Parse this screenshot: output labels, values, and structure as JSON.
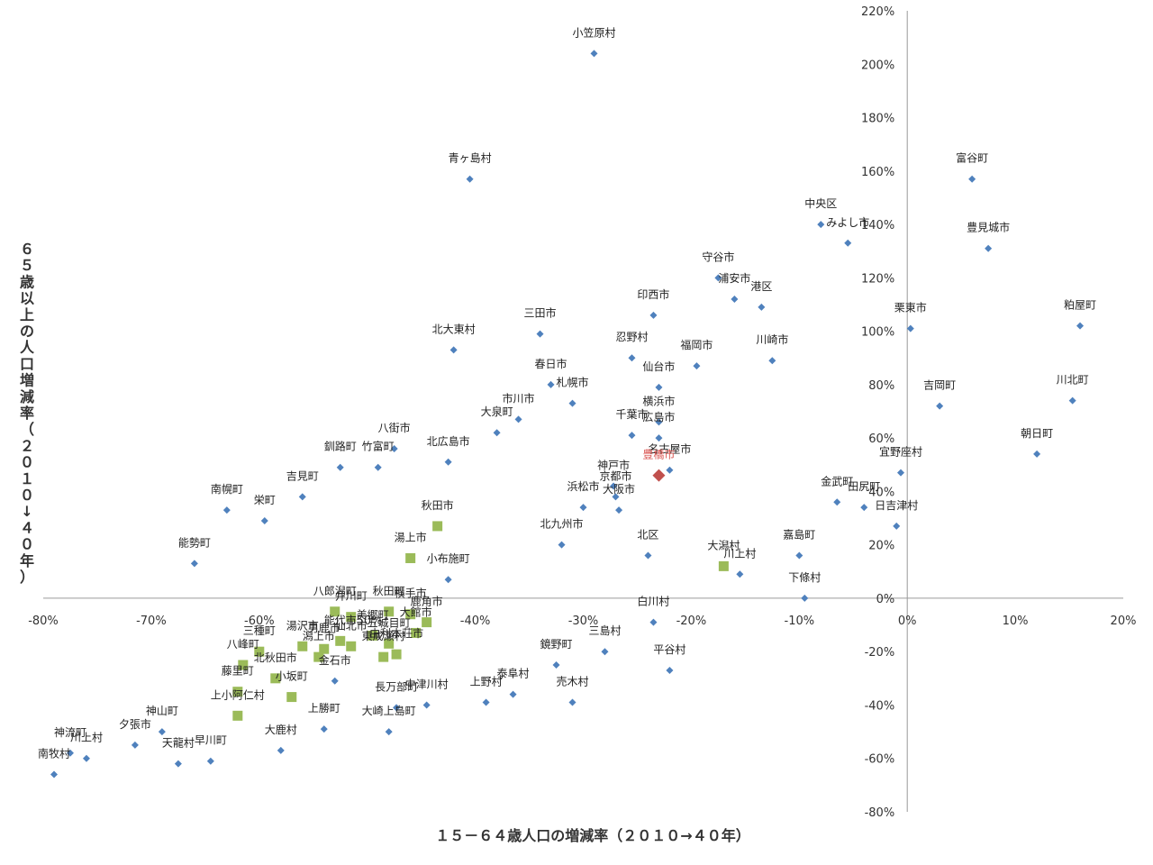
{
  "chart_data": {
    "type": "scatter",
    "xlabel": "１５－６４歳人口の増減率（２０１０→４０年）",
    "ylabel": "６５歳以上の人口増減率（２０１０↓４０年）",
    "xlim": [
      -80,
      20
    ],
    "ylim": [
      -80,
      220
    ],
    "x_ticks": [
      "-80%",
      "-70%",
      "-60%",
      "-50%",
      "-40%",
      "-30%",
      "-20%",
      "-10%",
      "0%",
      "10%",
      "20%"
    ],
    "y_ticks": [
      "220%",
      "200%",
      "180%",
      "160%",
      "140%",
      "120%",
      "100%",
      "80%",
      "60%",
      "40%",
      "20%",
      "0%",
      "-20%",
      "-40%",
      "-60%",
      "-80%"
    ],
    "grid": false,
    "legend": "none",
    "colors": {
      "blue": "#4f81bd",
      "green": "#9bbb59",
      "red": "#c0504d"
    },
    "series": [
      {
        "marker": "diamond",
        "color": "#4f81bd",
        "points": [
          {
            "label": "小笠原村",
            "x": -29,
            "y": 204
          },
          {
            "label": "青ヶ島村",
            "x": -40.5,
            "y": 157
          },
          {
            "label": "富谷町",
            "x": 6,
            "y": 157
          },
          {
            "label": "中央区",
            "x": -8,
            "y": 140
          },
          {
            "label": "みよし市",
            "x": -5.5,
            "y": 133
          },
          {
            "label": "豊見城市",
            "x": 7.5,
            "y": 131
          },
          {
            "label": "守谷市",
            "x": -17.5,
            "y": 120
          },
          {
            "label": "浦安市",
            "x": -16,
            "y": 112
          },
          {
            "label": "港区",
            "x": -13.5,
            "y": 109
          },
          {
            "label": "印西市",
            "x": -23.5,
            "y": 106
          },
          {
            "label": "粕屋町",
            "x": 16,
            "y": 102
          },
          {
            "label": "栗東市",
            "x": 0.3,
            "y": 101
          },
          {
            "label": "三田市",
            "x": -34,
            "y": 99
          },
          {
            "label": "北大東村",
            "x": -42,
            "y": 93
          },
          {
            "label": "忍野村",
            "x": -25.5,
            "y": 90
          },
          {
            "label": "福岡市",
            "x": -19.5,
            "y": 87
          },
          {
            "label": "川崎市",
            "x": -12.5,
            "y": 89
          },
          {
            "label": "春日市",
            "x": -33,
            "y": 80
          },
          {
            "label": "札幌市",
            "x": -31,
            "y": 73
          },
          {
            "label": "仙台市",
            "x": -23,
            "y": 79
          },
          {
            "label": "吉岡町",
            "x": 3,
            "y": 72
          },
          {
            "label": "川北町",
            "x": 15.3,
            "y": 74
          },
          {
            "label": "市川市",
            "x": -36,
            "y": 67
          },
          {
            "label": "大泉町",
            "x": -38,
            "y": 62
          },
          {
            "label": "横浜市",
            "x": -23,
            "y": 66
          },
          {
            "label": "千葉市",
            "x": -25.5,
            "y": 61
          },
          {
            "label": "広島市",
            "x": -23,
            "y": 60
          },
          {
            "label": "八街市",
            "x": -47.5,
            "y": 56
          },
          {
            "label": "北広島市",
            "x": -42.5,
            "y": 51
          },
          {
            "label": "釧路町",
            "x": -52.5,
            "y": 49
          },
          {
            "label": "竹富町",
            "x": -49,
            "y": 49
          },
          {
            "label": "朝日町",
            "x": 12,
            "y": 54
          },
          {
            "label": "名古屋市",
            "x": -22,
            "y": 48
          },
          {
            "label": "宜野座村",
            "x": -0.6,
            "y": 47
          },
          {
            "label": "吉見町",
            "x": -56,
            "y": 38
          },
          {
            "label": "神戸市",
            "x": -27.2,
            "y": 42
          },
          {
            "label": "京都市",
            "x": -27,
            "y": 38
          },
          {
            "label": "大阪市",
            "x": -26.7,
            "y": 33
          },
          {
            "label": "浜松市",
            "x": -30,
            "y": 34
          },
          {
            "label": "南幌町",
            "x": -63,
            "y": 33
          },
          {
            "label": "栄町",
            "x": -59.5,
            "y": 29
          },
          {
            "label": "金武町",
            "x": -6.5,
            "y": 36
          },
          {
            "label": "田尻町",
            "x": -4,
            "y": 34
          },
          {
            "label": "日吉津村",
            "x": -1,
            "y": 27
          },
          {
            "label": "北九州市",
            "x": -32,
            "y": 20
          },
          {
            "label": "北区",
            "x": -24,
            "y": 16
          },
          {
            "label": "嘉島町",
            "x": -10,
            "y": 16
          },
          {
            "label": "川上村",
            "x": -15.5,
            "y": 9
          },
          {
            "label": "能勢町",
            "x": -66,
            "y": 13
          },
          {
            "label": "小布施町",
            "x": -42.5,
            "y": 7
          },
          {
            "label": "下條村",
            "x": -9.5,
            "y": 0
          },
          {
            "label": "白川村",
            "x": -23.5,
            "y": -9
          },
          {
            "label": "三島村",
            "x": -28,
            "y": -20
          },
          {
            "label": "鏡野町",
            "x": -32.5,
            "y": -25
          },
          {
            "label": "平谷村",
            "x": -22,
            "y": -27
          },
          {
            "label": "金石市",
            "x": -53,
            "y": -31
          },
          {
            "label": "泰阜村",
            "x": -36.5,
            "y": -36
          },
          {
            "label": "売木村",
            "x": -31,
            "y": -39
          },
          {
            "label": "上野村",
            "x": -39,
            "y": -39
          },
          {
            "label": "長万部町",
            "x": -47.3,
            "y": -41
          },
          {
            "label": "中津川村",
            "x": -44.5,
            "y": -40
          },
          {
            "label": "神山町",
            "x": -69,
            "y": -50
          },
          {
            "label": "上勝町",
            "x": -54,
            "y": -49
          },
          {
            "label": "大崎上島町",
            "x": -48,
            "y": -50
          },
          {
            "label": "夕張市",
            "x": -71.5,
            "y": -55
          },
          {
            "label": "大鹿村",
            "x": -58,
            "y": -57
          },
          {
            "label": "神流町",
            "x": -77.5,
            "y": -58
          },
          {
            "label": "川上村",
            "x": -76,
            "y": -60
          },
          {
            "label": "天龍村",
            "x": -67.5,
            "y": -62
          },
          {
            "label": "早川町",
            "x": -64.5,
            "y": -61
          },
          {
            "label": "南牧村",
            "x": -79,
            "y": -66
          }
        ]
      },
      {
        "marker": "square",
        "color": "#9bbb59",
        "points": [
          {
            "label": "秋田市",
            "x": -43.5,
            "y": 27
          },
          {
            "label": "湯上市",
            "x": -46,
            "y": 15
          },
          {
            "label": "大潟村",
            "x": -17,
            "y": 12
          },
          {
            "label": "八郎潟町",
            "x": -53,
            "y": -5
          },
          {
            "label": "井川町",
            "x": -51.5,
            "y": -7
          },
          {
            "label": "秋田町",
            "x": -48,
            "y": -5
          },
          {
            "label": "横手市",
            "x": -46,
            "y": -6
          },
          {
            "label": "鹿角市",
            "x": -44.5,
            "y": -9
          },
          {
            "label": "大館市",
            "x": -45.5,
            "y": -13
          },
          {
            "label": "美郷町",
            "x": -49.5,
            "y": -14
          },
          {
            "label": "能代市",
            "x": -52.5,
            "y": -16
          },
          {
            "label": "湯沢市",
            "x": -56,
            "y": -18
          },
          {
            "label": "男鹿市",
            "x": -54,
            "y": -19
          },
          {
            "label": "仙北市",
            "x": -51.5,
            "y": -18
          },
          {
            "label": "五城目町",
            "x": -48,
            "y": -17
          },
          {
            "label": "由利本荘市",
            "x": -47.3,
            "y": -21
          },
          {
            "label": "潟上市",
            "x": -54.5,
            "y": -22
          },
          {
            "label": "東成瀬村",
            "x": -48.5,
            "y": -22
          },
          {
            "label": "三種町",
            "x": -60,
            "y": -20
          },
          {
            "label": "八峰町",
            "x": -61.5,
            "y": -25
          },
          {
            "label": "北秋田市",
            "x": -58.5,
            "y": -30
          },
          {
            "label": "藤里町",
            "x": -62,
            "y": -35
          },
          {
            "label": "小坂町",
            "x": -57,
            "y": -37
          },
          {
            "label": "上小阿仁村",
            "x": -62,
            "y": -44
          }
        ]
      },
      {
        "marker": "diamond-large",
        "color": "#c0504d",
        "points": [
          {
            "label": "豊橋市",
            "x": -23,
            "y": 46
          }
        ]
      }
    ]
  }
}
